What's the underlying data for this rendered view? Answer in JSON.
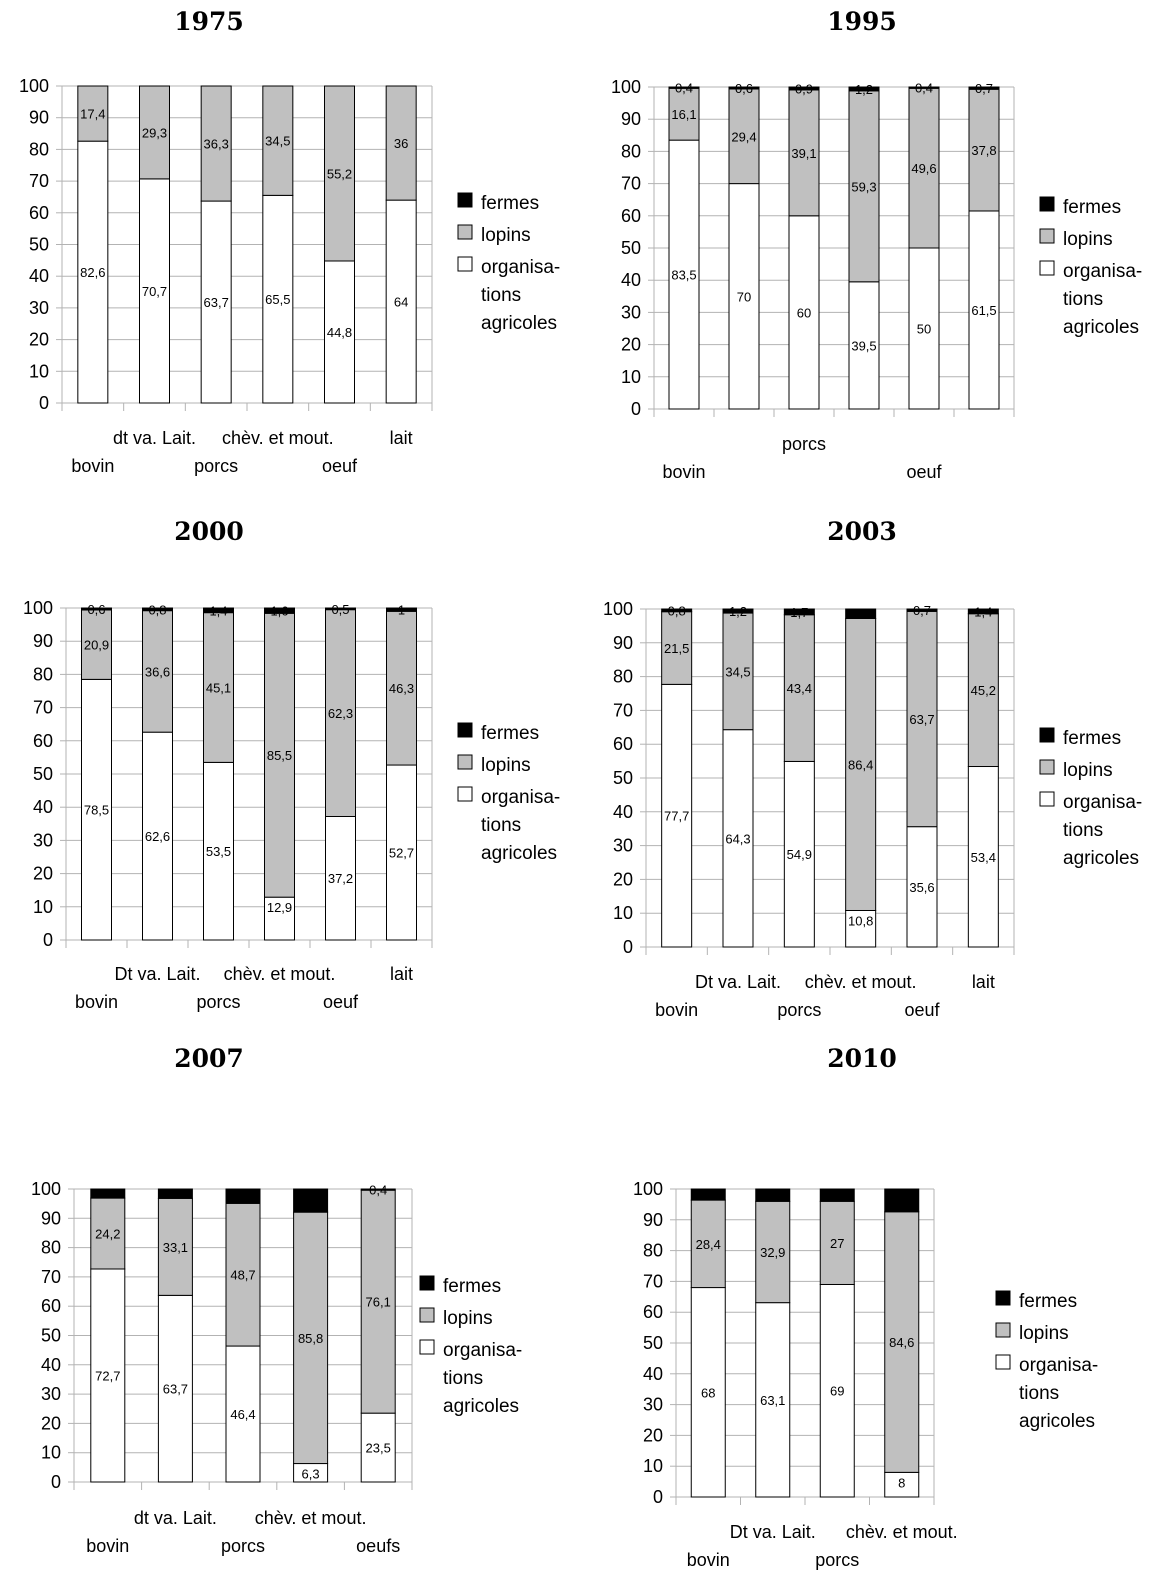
{
  "chart_data": [
    {
      "type": "bar",
      "stacked": true,
      "title": "1975",
      "ylim": [
        0,
        100
      ],
      "yticks": [
        0,
        10,
        20,
        30,
        40,
        50,
        60,
        70,
        80,
        90,
        100
      ],
      "grid": true,
      "legend_position": "right",
      "category_labels_row1": [
        "",
        "dt va. Lait.",
        "",
        "chèv. et mout.",
        "",
        "lait"
      ],
      "category_labels_row2": [
        "bovin",
        "",
        "porcs",
        "",
        "oeuf",
        ""
      ],
      "series": [
        {
          "name": "organisa-tions agricoles",
          "values": [
            82.6,
            70.7,
            63.7,
            65.5,
            44.8,
            64
          ],
          "labels": [
            "82,6",
            "70,7",
            "63,7",
            "65,5",
            "44,8",
            "64"
          ],
          "color": "#ffffff"
        },
        {
          "name": "lopins",
          "values": [
            17.4,
            29.3,
            36.3,
            34.5,
            55.2,
            36
          ],
          "labels": [
            "17,4",
            "29,3",
            "36,3",
            "34,5",
            "55,2",
            "36"
          ],
          "color": "#c0c0c0"
        },
        {
          "name": "fermes",
          "values": [
            0,
            0,
            0,
            0,
            0,
            0
          ],
          "labels": [
            "",
            "",
            "",
            "",
            "",
            ""
          ],
          "color": "#000000"
        }
      ]
    },
    {
      "type": "bar",
      "stacked": true,
      "title": "1995",
      "ylim": [
        0,
        100
      ],
      "yticks": [
        0,
        10,
        20,
        30,
        40,
        50,
        60,
        70,
        80,
        90,
        100
      ],
      "grid": true,
      "legend_position": "right",
      "category_labels_row1": [
        "",
        "",
        "porcs",
        "",
        "",
        ""
      ],
      "category_labels_row2": [
        "bovin",
        "",
        "",
        "",
        "oeuf",
        ""
      ],
      "series": [
        {
          "name": "organisa-tions agricoles",
          "values": [
            83.5,
            70,
            60,
            39.5,
            50,
            61.5
          ],
          "labels": [
            "83,5",
            "70",
            "60",
            "39,5",
            "50",
            "61,5"
          ],
          "color": "#ffffff"
        },
        {
          "name": "lopins",
          "values": [
            16.1,
            29.4,
            39.1,
            59.3,
            49.6,
            37.8
          ],
          "labels": [
            "16,1",
            "29,4",
            "39,1",
            "59,3",
            "49,6",
            "37,8"
          ],
          "color": "#c0c0c0"
        },
        {
          "name": "fermes",
          "values": [
            0.4,
            0.6,
            0.9,
            1.2,
            0.4,
            0.7
          ],
          "labels": [
            "0,4",
            "0,6",
            "0,9",
            "1,2",
            "0,4",
            "0,7"
          ],
          "color": "#000000"
        }
      ]
    },
    {
      "type": "bar",
      "stacked": true,
      "title": "2000",
      "ylim": [
        0,
        100
      ],
      "yticks": [
        0,
        10,
        20,
        30,
        40,
        50,
        60,
        70,
        80,
        90,
        100
      ],
      "grid": true,
      "legend_position": "right",
      "category_labels_row1": [
        "",
        "Dt va. Lait.",
        "",
        "chèv. et mout.",
        "",
        "lait"
      ],
      "category_labels_row2": [
        "bovin",
        "",
        "porcs",
        "",
        "oeuf",
        ""
      ],
      "series": [
        {
          "name": "organisa-tions agricoles",
          "values": [
            78.5,
            62.6,
            53.5,
            12.9,
            37.2,
            52.7
          ],
          "labels": [
            "78,5",
            "62,6",
            "53,5",
            "12,9",
            "37,2",
            "52,7"
          ],
          "color": "#ffffff"
        },
        {
          "name": "lopins",
          "values": [
            20.9,
            36.6,
            45.1,
            85.5,
            62.3,
            46.3
          ],
          "labels": [
            "20,9",
            "36,6",
            "45,1",
            "85,5",
            "62,3",
            "46,3"
          ],
          "color": "#c0c0c0"
        },
        {
          "name": "fermes",
          "values": [
            0.6,
            0.8,
            1.4,
            1.6,
            0.5,
            1
          ],
          "labels": [
            "0,6",
            "0,8",
            "1,4",
            "1,6",
            "0,5",
            "1"
          ],
          "color": "#000000"
        }
      ]
    },
    {
      "type": "bar",
      "stacked": true,
      "title": "2003",
      "ylim": [
        0,
        100
      ],
      "yticks": [
        0,
        10,
        20,
        30,
        40,
        50,
        60,
        70,
        80,
        90,
        100
      ],
      "grid": true,
      "legend_position": "right",
      "category_labels_row1": [
        "",
        "Dt va. Lait.",
        "",
        "chèv. et mout.",
        "",
        "lait"
      ],
      "category_labels_row2": [
        "bovin",
        "",
        "porcs",
        "",
        "oeuf",
        ""
      ],
      "series": [
        {
          "name": "organisa-tions agricoles",
          "values": [
            77.7,
            64.3,
            54.9,
            10.8,
            35.6,
            53.4
          ],
          "labels": [
            "77,7",
            "64,3",
            "54,9",
            "10,8",
            "35,6",
            "53,4"
          ],
          "color": "#ffffff"
        },
        {
          "name": "lopins",
          "values": [
            21.5,
            34.5,
            43.4,
            86.4,
            63.7,
            45.2
          ],
          "labels": [
            "21,5",
            "34,5",
            "43,4",
            "86,4",
            "63,7",
            "45,2"
          ],
          "color": "#c0c0c0"
        },
        {
          "name": "fermes",
          "values": [
            0.8,
            1.2,
            1.7,
            2.8,
            0.7,
            1.4
          ],
          "labels": [
            "0,8",
            "1,2",
            "1,7",
            "",
            "0,7",
            "1,4"
          ],
          "color": "#000000"
        }
      ]
    },
    {
      "type": "bar",
      "stacked": true,
      "title": "2007",
      "ylim": [
        0,
        100
      ],
      "yticks": [
        0,
        10,
        20,
        30,
        40,
        50,
        60,
        70,
        80,
        90,
        100
      ],
      "grid": true,
      "legend_position": "right",
      "category_labels_row1": [
        "",
        "dt va. Lait.",
        "",
        "chèv. et mout.",
        ""
      ],
      "category_labels_row2": [
        "bovin",
        "",
        "porcs",
        "",
        "oeufs"
      ],
      "series": [
        {
          "name": "organisa-tions agricoles",
          "values": [
            72.7,
            63.7,
            46.4,
            6.3,
            23.5
          ],
          "labels": [
            "72,7",
            "63,7",
            "46,4",
            "6,3",
            "23,5"
          ],
          "color": "#ffffff"
        },
        {
          "name": "lopins",
          "values": [
            24.2,
            33.1,
            48.7,
            85.8,
            76.1
          ],
          "labels": [
            "24,2",
            "33,1",
            "48,7",
            "85,8",
            "76,1"
          ],
          "color": "#c0c0c0"
        },
        {
          "name": "fermes",
          "values": [
            3.1,
            3.2,
            4.9,
            7.9,
            0.4
          ],
          "labels": [
            "",
            "",
            "",
            "",
            "0,4"
          ],
          "color": "#000000"
        }
      ]
    },
    {
      "type": "bar",
      "stacked": true,
      "title": "2010",
      "ylim": [
        0,
        100
      ],
      "yticks": [
        0,
        10,
        20,
        30,
        40,
        50,
        60,
        70,
        80,
        90,
        100
      ],
      "grid": true,
      "legend_position": "right",
      "category_labels_row1": [
        "",
        "Dt va. Lait.",
        "",
        "chèv. et mout."
      ],
      "category_labels_row2": [
        "bovin",
        "",
        "porcs",
        ""
      ],
      "series": [
        {
          "name": "organisa-tions agricoles",
          "values": [
            68,
            63.1,
            69,
            8
          ],
          "labels": [
            "68",
            "63,1",
            "69",
            "8"
          ],
          "color": "#ffffff"
        },
        {
          "name": "lopins",
          "values": [
            28.4,
            32.9,
            27,
            84.6
          ],
          "labels": [
            "28,4",
            "32,9",
            "27",
            "84,6"
          ],
          "color": "#c0c0c0"
        },
        {
          "name": "fermes",
          "values": [
            3.6,
            4,
            4,
            7.4
          ],
          "labels": [
            "",
            "",
            "",
            ""
          ],
          "color": "#000000"
        }
      ]
    }
  ],
  "legend": {
    "items": [
      {
        "label": "fermes",
        "color": "#000000"
      },
      {
        "label": "lopins",
        "color": "#c0c0c0"
      },
      {
        "label_lines": [
          "organisa-",
          "tions",
          "agricoles"
        ],
        "color": "#ffffff"
      }
    ]
  }
}
